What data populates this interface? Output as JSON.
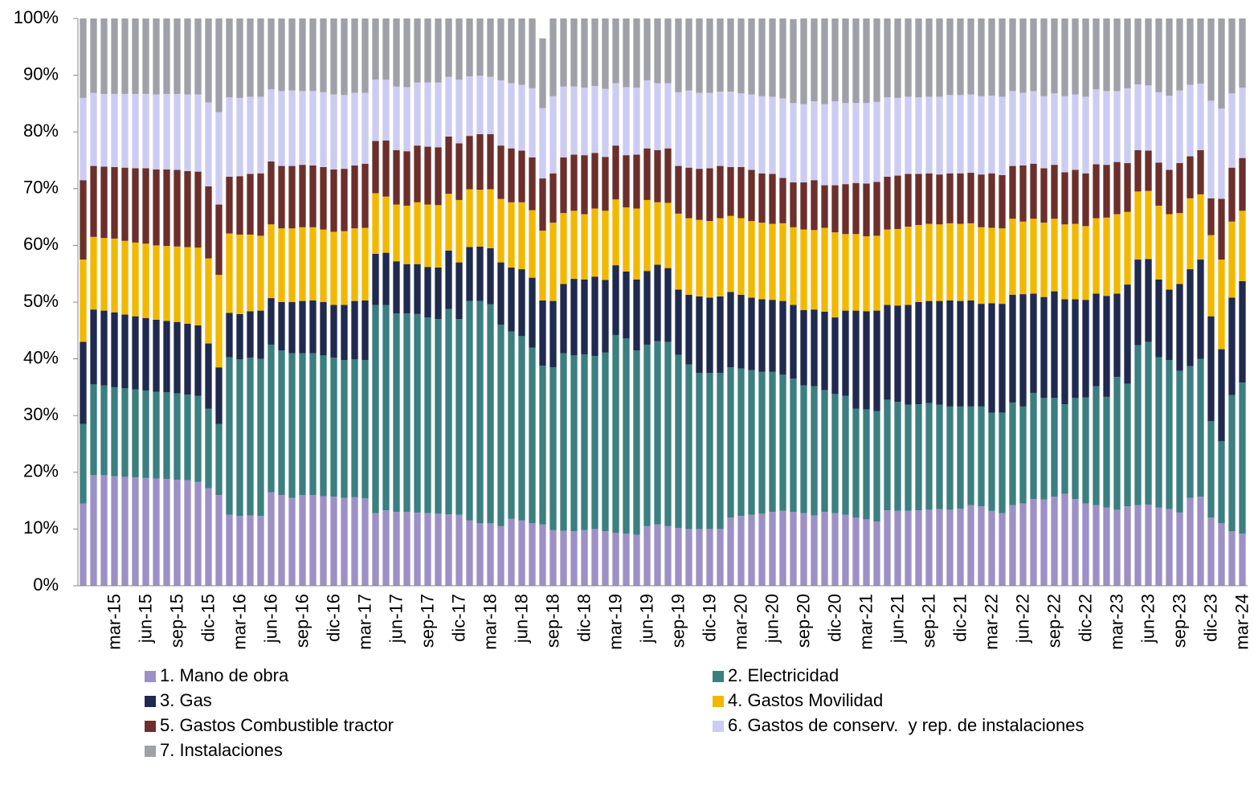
{
  "chart_data": {
    "type": "stacked-bar-percent",
    "categories": [
      null,
      null,
      null,
      "mar-15",
      null,
      null,
      "jun-15",
      null,
      null,
      "sep-15",
      null,
      null,
      "dic-15",
      null,
      null,
      "mar-16",
      null,
      null,
      "jun-16",
      null,
      null,
      "sep-16",
      null,
      null,
      "dic-16",
      null,
      null,
      "mar-17",
      null,
      null,
      "jun-17",
      null,
      null,
      "sep-17",
      null,
      null,
      "dic-17",
      null,
      null,
      "mar-18",
      null,
      null,
      "jun-18",
      null,
      null,
      "sep-18",
      null,
      null,
      "dic-18",
      null,
      null,
      "mar-19",
      null,
      null,
      "jun-19",
      null,
      null,
      "sep-19",
      null,
      null,
      "dic-19",
      null,
      null,
      "mar-20",
      null,
      null,
      "jun-20",
      null,
      null,
      "sep-20",
      null,
      null,
      "dic-20",
      null,
      null,
      "mar-21",
      null,
      null,
      "jun-21",
      null,
      null,
      "sep-21",
      null,
      null,
      "dic-21",
      null,
      null,
      "mar-22",
      null,
      null,
      "jun-22",
      null,
      null,
      "sep-22",
      null,
      null,
      "dic-22",
      null,
      null,
      "mar-23",
      null,
      null,
      "jun-23",
      null,
      null,
      "sep-23",
      null,
      null,
      "dic-23",
      null,
      null,
      "mar-24"
    ],
    "series": [
      {
        "name": "1. Mano de obra",
        "color": "#9d90c6",
        "values": [
          14.5,
          19.5,
          19.5,
          19.3,
          19.2,
          19.1,
          19,
          18.9,
          18.8,
          18.7,
          18.6,
          18.3,
          17.2,
          16,
          12.5,
          12.3,
          12.4,
          12.3,
          16.5,
          16,
          15.5,
          16,
          16,
          15.8,
          15.7,
          15.5,
          15.6,
          15.4,
          12.8,
          13.3,
          13,
          13,
          12.9,
          12.8,
          12.7,
          12.6,
          12.5,
          11.5,
          11,
          11,
          10.5,
          11.8,
          11.5,
          11,
          10.8,
          9.8,
          9.7,
          9.6,
          9.8,
          10,
          9.6,
          9.3,
          9.2,
          9,
          10.5,
          10.8,
          10.5,
          10.2,
          10,
          10,
          10,
          10,
          12,
          12.3,
          12.5,
          12.7,
          13,
          13.2,
          13,
          12.8,
          12.4,
          13,
          12.8,
          12.5,
          12,
          11.7,
          11.3,
          13.3,
          13.2,
          13.2,
          13.3,
          13.4,
          13.5,
          13.4,
          13.6,
          14.2,
          14,
          13.2,
          12.8,
          14.2,
          14.5,
          15.3,
          15.2,
          15.7,
          16.2,
          15.3,
          14.5,
          14.2,
          13.8,
          13.4,
          14,
          14.2,
          14.3,
          13.8,
          13.5,
          12.9,
          15.5,
          15.7,
          12,
          11,
          9.6,
          9.2
        ]
      },
      {
        "name": "2. Electricidad",
        "color": "#3b7f80",
        "values": [
          14,
          16,
          15.8,
          15.7,
          15.6,
          15.5,
          15.4,
          15.3,
          15.3,
          15.2,
          15.1,
          15.2,
          14,
          12.5,
          27.8,
          27.6,
          27.8,
          27.7,
          26,
          25.5,
          25.5,
          25,
          25,
          24.8,
          24.5,
          24.3,
          24.3,
          24.4,
          36.7,
          36.2,
          35,
          35,
          35,
          34.5,
          34.3,
          36.2,
          34.5,
          38.7,
          39.2,
          38.6,
          35.5,
          33,
          32.5,
          31,
          28,
          28.7,
          31.3,
          31,
          31,
          30.5,
          31.5,
          34.9,
          34.4,
          32.5,
          32,
          32.3,
          32.5,
          30.5,
          29,
          27.5,
          27.5,
          27.5,
          26.5,
          26,
          25.5,
          25,
          24.7,
          24,
          23.5,
          22.5,
          22.8,
          21.5,
          21,
          21,
          19.2,
          19.4,
          19.5,
          19.5,
          19.2,
          18.7,
          18.7,
          18.8,
          18.4,
          18.2,
          18,
          17.4,
          17.6,
          17.3,
          17.7,
          18.1,
          17.1,
          18.7,
          17.9,
          17.4,
          15.8,
          17.8,
          18.7,
          21,
          19.5,
          23.4,
          21.6,
          28.2,
          28.7,
          26.5,
          26.3,
          25,
          23.2,
          24.3,
          17,
          14.5,
          24,
          26.6
        ]
      },
      {
        "name": "3. Gas",
        "color": "#1f2a4e",
        "values": [
          14.5,
          13.2,
          13.2,
          13.2,
          13,
          12.9,
          12.8,
          12.7,
          12.6,
          12.6,
          12.5,
          12.4,
          11.5,
          10,
          7.8,
          8,
          8.2,
          8.5,
          8.2,
          8.5,
          9,
          9.2,
          9.3,
          9.4,
          9.3,
          9.7,
          10.3,
          10.5,
          9,
          9.2,
          9.2,
          8.7,
          8.8,
          8.9,
          9.1,
          10.3,
          10,
          9.5,
          9.6,
          9.9,
          11,
          11.3,
          11.8,
          12.3,
          11.5,
          11.7,
          12.2,
          13.5,
          13.2,
          14,
          12.8,
          12.3,
          11.8,
          12.5,
          13,
          13.5,
          13,
          11.5,
          12.3,
          13.5,
          13.3,
          13.5,
          13.3,
          13,
          12.8,
          12.8,
          12.7,
          13,
          13,
          13.3,
          13.5,
          13.8,
          13.5,
          15,
          17.3,
          17.3,
          17.7,
          16.7,
          17,
          17.6,
          18,
          18,
          18.3,
          18.7,
          18.6,
          18.7,
          18.1,
          19.3,
          19.2,
          19,
          19.8,
          17.5,
          17.8,
          18.8,
          18.5,
          17.4,
          17.2,
          16.3,
          17.8,
          14.7,
          17.5,
          15.1,
          14.6,
          13.7,
          12.4,
          15.3,
          17.1,
          17.5,
          18.5,
          16.2,
          17.2,
          17.9
        ]
      },
      {
        "name": "4. Gastos Movilidad",
        "color": "#f2b800",
        "values": [
          14.5,
          12.8,
          12.8,
          13,
          13,
          13,
          13.1,
          13.1,
          13.2,
          13.3,
          13.5,
          13.7,
          15,
          16.3,
          14,
          14,
          13.5,
          13.2,
          13,
          13,
          13,
          13,
          12.9,
          12.8,
          12.9,
          13,
          12.8,
          12.8,
          10.7,
          9.9,
          10,
          10.3,
          10.9,
          11,
          11,
          10,
          11,
          10.2,
          10,
          10.4,
          11.2,
          11.5,
          11.8,
          11.9,
          12.3,
          13.8,
          12.5,
          12,
          11.5,
          12,
          12.2,
          11.6,
          11.3,
          12.5,
          12.5,
          11,
          11.5,
          13.4,
          13.5,
          13.5,
          13.5,
          13.8,
          13.4,
          13.5,
          13.5,
          13.5,
          13.4,
          13.7,
          13.7,
          14.2,
          14,
          14.8,
          15,
          13.5,
          13.5,
          13.2,
          13.2,
          13.3,
          13.5,
          13.8,
          13.6,
          13.6,
          13.5,
          13.6,
          13.6,
          13.6,
          13.5,
          13.3,
          13.3,
          13.4,
          12.8,
          13.2,
          13.1,
          12.8,
          13.2,
          13.3,
          13,
          13.3,
          13.8,
          14,
          12.8,
          12,
          12,
          13,
          13.3,
          12.5,
          12.5,
          11.5,
          14.3,
          15.8,
          13.4,
          12.4
        ]
      },
      {
        "name": "5. Gastos Combustible tractor",
        "color": "#6c2f2b",
        "values": [
          14,
          12.5,
          12.6,
          12.6,
          12.9,
          13.1,
          13.3,
          13.4,
          13.5,
          13.5,
          13.4,
          13.4,
          12.7,
          12.4,
          10,
          10.3,
          10.7,
          11,
          11.1,
          11,
          11,
          11,
          10.9,
          11,
          11,
          11,
          11.1,
          11.3,
          9.2,
          9.9,
          9.6,
          9.6,
          10,
          10.2,
          10.2,
          10.1,
          10,
          9.4,
          9.8,
          9.7,
          9.4,
          9.5,
          9.1,
          9.3,
          9.2,
          8.7,
          9.8,
          9.9,
          10.4,
          9.8,
          9.5,
          9.5,
          9.2,
          9.5,
          9.1,
          9.2,
          9.6,
          8.4,
          8.9,
          9,
          9.3,
          9.2,
          8.6,
          9,
          9,
          8.7,
          8.8,
          8,
          7.9,
          8.3,
          8.8,
          7.5,
          8.3,
          8.8,
          9,
          9.3,
          9.5,
          9.3,
          9.4,
          9.3,
          9,
          8.9,
          8.8,
          8.8,
          8.9,
          8.9,
          9.3,
          9.6,
          9.4,
          9.3,
          9.9,
          9.7,
          9.6,
          9.5,
          9.2,
          9.5,
          9.3,
          9.5,
          9.3,
          9.2,
          8.6,
          7.3,
          7.1,
          7.6,
          7.8,
          8.8,
          7.4,
          7.8,
          6.5,
          10.7,
          9.5,
          9.3
        ]
      },
      {
        "name": "6. Gastos de conserv.  y rep. de instalaciones",
        "color": "#ccccf3",
        "values": [
          14.5,
          12.9,
          12.8,
          12.9,
          13,
          13.1,
          13.1,
          13.2,
          13.3,
          13.4,
          13.5,
          13.6,
          14.8,
          16.3,
          14,
          13.8,
          13.6,
          13.5,
          12.7,
          13.2,
          13.3,
          13,
          13.1,
          13.2,
          13.2,
          13,
          12.8,
          12.5,
          10.8,
          10.7,
          11.2,
          11.3,
          11.1,
          11.3,
          11.4,
          10.5,
          11.2,
          10.5,
          10.3,
          10.1,
          11.5,
          11.5,
          11.6,
          12.2,
          12.4,
          13.6,
          12.5,
          12,
          11.9,
          11.8,
          12,
          11,
          12,
          11.8,
          12,
          11.8,
          11.5,
          13,
          13.6,
          13.4,
          13.3,
          13.1,
          13.3,
          13,
          13.3,
          13.6,
          13.6,
          14,
          14,
          13.8,
          13.9,
          14.3,
          14.8,
          14.3,
          14.1,
          14.2,
          14.1,
          14,
          13.7,
          13.6,
          13.5,
          13.5,
          13.7,
          13.8,
          13.8,
          13.8,
          13.8,
          13.7,
          13.8,
          13.2,
          12.8,
          12.8,
          12.7,
          12.6,
          13.4,
          13.3,
          13.5,
          13.2,
          13,
          12.5,
          13.2,
          11.6,
          11.5,
          12.4,
          13.1,
          12.8,
          12.6,
          11.7,
          17.2,
          15.9,
          13.1,
          12.4
        ]
      },
      {
        "name": "7. Instalaciones",
        "color": "#a0a0a8",
        "values": [
          14,
          13.1,
          13.3,
          13.3,
          13.3,
          13.3,
          13.3,
          13.4,
          13.3,
          13.3,
          13.4,
          13.4,
          14.8,
          16.5,
          13.9,
          14,
          13.8,
          13.8,
          12.5,
          12.8,
          12.7,
          12.8,
          12.8,
          13,
          13.4,
          13.5,
          13.1,
          13.1,
          10.8,
          10.8,
          12,
          12.1,
          11.3,
          11.3,
          11.3,
          10.3,
          10.8,
          10.2,
          10.1,
          10.3,
          10.9,
          11.4,
          11.7,
          12.3,
          12.3,
          13.7,
          12,
          12,
          12.2,
          11.9,
          12.4,
          11.4,
          12.1,
          12.2,
          10.9,
          11.4,
          11.4,
          13,
          12.7,
          13.1,
          13.1,
          12.9,
          12.9,
          13.2,
          13.4,
          13.7,
          13.8,
          14.1,
          14.8,
          15.1,
          14.6,
          15.1,
          14.6,
          14.9,
          14.9,
          14.9,
          14.7,
          13.9,
          14,
          13.8,
          13.9,
          13.8,
          13.8,
          13.5,
          13.5,
          13.4,
          13.7,
          13.6,
          13.8,
          12.8,
          13.1,
          12.8,
          13.7,
          13.2,
          13.7,
          13.4,
          13.8,
          12.5,
          12.8,
          12.8,
          12.3,
          11.6,
          11.8,
          13,
          13.6,
          12.7,
          11.7,
          11.5,
          14.5,
          15.9,
          13.2,
          12.2
        ]
      }
    ],
    "ylim": [
      0,
      100
    ],
    "yticks": [
      {
        "value": 0,
        "label": "0%"
      },
      {
        "value": 10,
        "label": "10%"
      },
      {
        "value": 20,
        "label": "20%"
      },
      {
        "value": 30,
        "label": "30%"
      },
      {
        "value": 40,
        "label": "40%"
      },
      {
        "value": 50,
        "label": "50%"
      },
      {
        "value": 60,
        "label": "60%"
      },
      {
        "value": 70,
        "label": "70%"
      },
      {
        "value": 80,
        "label": "80%"
      },
      {
        "value": 90,
        "label": "90%"
      },
      {
        "value": 100,
        "label": "100%"
      }
    ],
    "grid": false,
    "legend": "bottom"
  }
}
